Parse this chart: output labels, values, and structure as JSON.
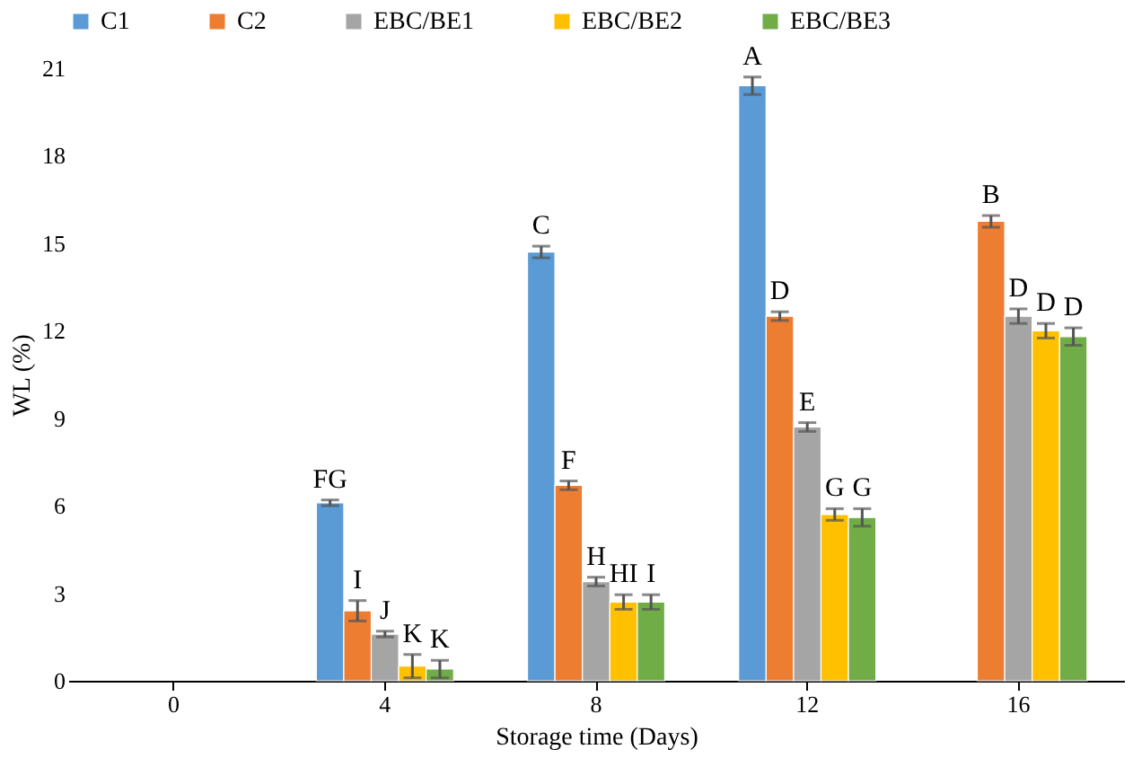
{
  "chart_data": {
    "type": "bar",
    "xlabel": "Storage time (Days)",
    "ylabel": "WL (%)",
    "categories": [
      "0",
      "4",
      "8",
      "12",
      "16"
    ],
    "series": [
      {
        "name": "C1",
        "color": "#5b9bd5",
        "values": [
          null,
          6.1,
          14.7,
          20.4,
          null
        ],
        "errors": [
          null,
          0.1,
          0.2,
          0.3,
          null
        ],
        "value_labels": [
          null,
          "FG",
          "C",
          "A",
          null
        ]
      },
      {
        "name": "C2",
        "color": "#ed7d31",
        "values": [
          null,
          2.4,
          6.7,
          12.5,
          15.75
        ],
        "errors": [
          null,
          0.35,
          0.15,
          0.15,
          0.2
        ],
        "value_labels": [
          null,
          "I",
          "F",
          "D",
          "B"
        ]
      },
      {
        "name": "EBC/BE1",
        "color": "#a5a5a5",
        "values": [
          null,
          1.6,
          3.4,
          8.7,
          12.5
        ],
        "errors": [
          null,
          0.1,
          0.15,
          0.15,
          0.25
        ],
        "value_labels": [
          null,
          "J",
          "H",
          "E",
          "D"
        ]
      },
      {
        "name": "EBC/BE2",
        "color": "#ffc000",
        "values": [
          null,
          0.5,
          2.7,
          5.7,
          12.0
        ],
        "errors": [
          null,
          0.4,
          0.25,
          0.2,
          0.25
        ],
        "value_labels": [
          null,
          "K",
          "HI",
          "G",
          "D"
        ]
      },
      {
        "name": "EBC/BE3",
        "color": "#70ad47",
        "values": [
          null,
          0.4,
          2.7,
          5.6,
          11.8
        ],
        "errors": [
          null,
          0.3,
          0.25,
          0.3,
          0.3
        ],
        "value_labels": [
          null,
          "K",
          "I",
          "G",
          "D"
        ]
      }
    ],
    "ylim": [
      0,
      21
    ],
    "yticks": [
      0,
      3,
      6,
      9,
      12,
      15,
      18,
      21
    ],
    "grid": false,
    "legend": "top"
  }
}
